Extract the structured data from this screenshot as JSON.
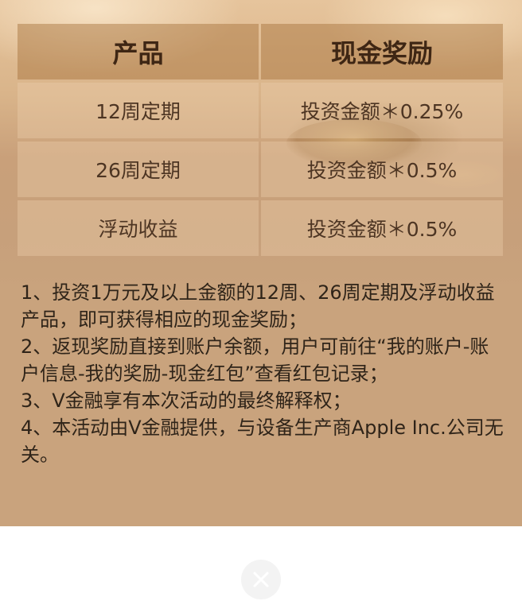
{
  "table": {
    "header": {
      "product": "产品",
      "reward": "现金奖励"
    },
    "rows": [
      {
        "product": "12周定期",
        "reward": "投资金额＊0.25%"
      },
      {
        "product": "26周定期",
        "reward": "投资金额＊0.5%"
      },
      {
        "product": "浮动收益",
        "reward": "投资金额＊0.5%"
      }
    ]
  },
  "notes": [
    "1、投资1万元及以上金额的12周、26周定期及浮动收益产品，即可获得相应的现金奖励；",
    "2、返现奖励直接到账户余额，用户可前往“我的账户-账户信息-我的奖励-现金红包”查看红包记录；",
    "3、V金融享有本次活动的最终解释权；",
    "4、本活动由V金融提供，与设备生产商Apple Inc.公司无关。"
  ],
  "close": {
    "icon": "close-icon"
  }
}
